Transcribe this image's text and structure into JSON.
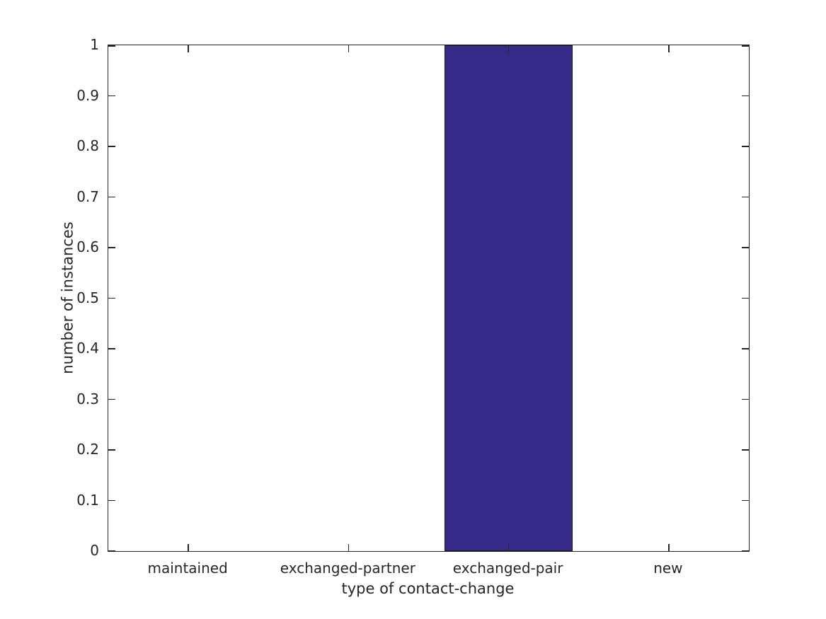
{
  "chart_data": {
    "type": "bar",
    "title": "",
    "xlabel": "type of contact-change",
    "ylabel": "number of instances",
    "categories": [
      "maintained",
      "exchanged-partner",
      "exchanged-pair",
      "new"
    ],
    "values": [
      0,
      0,
      1,
      0
    ],
    "ylim": [
      0,
      1
    ],
    "yticks": [
      0,
      0.1,
      0.2,
      0.3,
      0.4,
      0.5,
      0.6,
      0.7,
      0.8,
      0.9,
      1
    ],
    "ytick_labels": [
      "0",
      "0.1",
      "0.2",
      "0.3",
      "0.4",
      "0.5",
      "0.6",
      "0.7",
      "0.8",
      "0.9",
      "1"
    ],
    "bar_width_fraction": 0.8,
    "bar_color": "#352A87",
    "bar_edge_color": "#1a1a1a",
    "axis_color": "#262626",
    "text_color": "#262626",
    "grid": false,
    "legend_position": "none",
    "tick_direction": "in",
    "box": true
  }
}
